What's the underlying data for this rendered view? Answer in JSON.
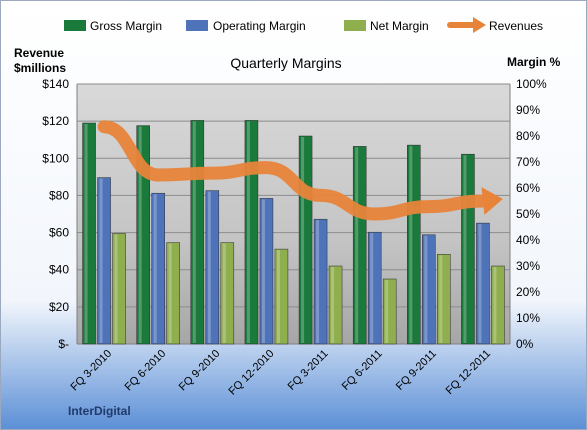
{
  "chart_data": {
    "type": "bar",
    "title": "Quarterly Margins",
    "left_axis_label_line1": "Revenue",
    "left_axis_label_line2": "$millions",
    "right_axis_label": "Margin %",
    "company_label": "InterDigital",
    "categories": [
      "FQ 3-2010",
      "FQ 6-2010",
      "FQ 9-2010",
      "FQ 12-2010",
      "FQ 3-2011",
      "FQ 6-2011",
      "FQ 9-2011",
      "FQ 12-2011"
    ],
    "left_ylim": [
      0,
      140
    ],
    "left_ticks": [
      "$-",
      "$20",
      "$40",
      "$60",
      "$80",
      "$100",
      "$120",
      "$140"
    ],
    "right_ylim": [
      0,
      1
    ],
    "right_ticks": [
      "0%",
      "10%",
      "20%",
      "30%",
      "40%",
      "50%",
      "60%",
      "70%",
      "80%",
      "90%",
      "100%"
    ],
    "series": [
      {
        "name": "Gross Margin",
        "axis": "right",
        "color": "#1a7a3c",
        "values": [
          0.85,
          0.84,
          0.86,
          0.86,
          0.8,
          0.76,
          0.765,
          0.73
        ]
      },
      {
        "name": "Operating Margin",
        "axis": "right",
        "color": "#4f73b8",
        "values": [
          0.64,
          0.58,
          0.59,
          0.56,
          0.48,
          0.43,
          0.42,
          0.465
        ]
      },
      {
        "name": "Net Margin",
        "axis": "right",
        "color": "#8fae4e",
        "values": [
          0.425,
          0.39,
          0.39,
          0.365,
          0.3,
          0.25,
          0.345,
          0.3
        ]
      },
      {
        "name": "Revenues",
        "axis": "left",
        "type": "line",
        "color": "#e8843a",
        "values": [
          117,
          91,
          92,
          95,
          80,
          70,
          74,
          77
        ]
      }
    ],
    "legend_position": "top",
    "grid": true
  }
}
